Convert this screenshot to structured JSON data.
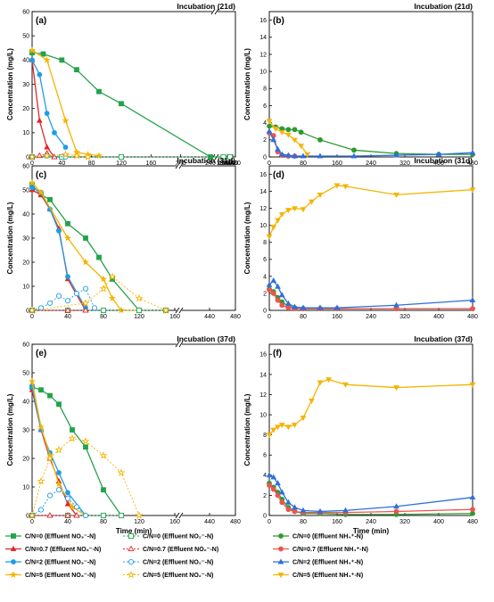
{
  "colors": {
    "C/N=0": "#22a34a",
    "C/N=0.7": "#e0262a",
    "C/N=2": "#1f9ce8",
    "C/N=5": "#f5b400",
    "nh4_0": "#2e9a2e",
    "nh4_07": "#ef5350",
    "nh4_2": "#2f6fdc",
    "nh4_5": "#f5b400"
  },
  "x_axis_label": "Time (min)",
  "y_axis_label": "Concentration (mg/L)",
  "legend": {
    "left": [
      {
        "key": "no3_0",
        "label": "C/N=0 (Effluent NO₃⁻-N)",
        "color": "#22a34a",
        "marker": "square",
        "filled": true,
        "dash": false
      },
      {
        "key": "no2_0",
        "label": "C/N=0 (Effluent NO₂⁻-N)",
        "color": "#22a34a",
        "marker": "square",
        "filled": false,
        "dash": true
      },
      {
        "key": "no3_07",
        "label": "C/N=0.7 (Effluent NO₃⁻-N)",
        "color": "#e0262a",
        "marker": "triangle",
        "filled": true,
        "dash": false
      },
      {
        "key": "no2_07",
        "label": "C/N=0.7 (Effluent NO₂⁻-N)",
        "color": "#e0262a",
        "marker": "triangle",
        "filled": false,
        "dash": true
      },
      {
        "key": "no3_2",
        "label": "C/N=2 (Effluent NO₃⁻-N)",
        "color": "#1f9ce8",
        "marker": "circle",
        "filled": true,
        "dash": false
      },
      {
        "key": "no2_2",
        "label": "C/N=2 (Effluent NO₂⁻-N)",
        "color": "#1f9ce8",
        "marker": "circle",
        "filled": false,
        "dash": true
      },
      {
        "key": "no3_5",
        "label": "C/N=5 (Effluent NO₃⁻-N)",
        "color": "#f5b400",
        "marker": "star",
        "filled": true,
        "dash": false
      },
      {
        "key": "no2_5",
        "label": "C/N=5 (Effluent NO₂⁻-N)",
        "color": "#f5b400",
        "marker": "star",
        "filled": false,
        "dash": true
      }
    ],
    "right": [
      {
        "key": "nh4_0",
        "label": "C/N=0 (Effluent NH₄⁺-N)",
        "color": "#2e9a2e",
        "marker": "circle",
        "filled": true,
        "dash": false
      },
      {
        "key": "nh4_07",
        "label": "C/N=0.7 (Effluent NH₄⁺-N)",
        "color": "#ef5350",
        "marker": "circle",
        "filled": true,
        "dash": false
      },
      {
        "key": "nh4_2",
        "label": "C/N=2 (Effluent NH₄⁺-N)",
        "color": "#2f6fdc",
        "marker": "triangle",
        "filled": true,
        "dash": false
      },
      {
        "key": "nh4_5",
        "label": "C/N=5 (Effluent NH₄⁺-N)",
        "color": "#f5b400",
        "marker": "tri-down",
        "filled": true,
        "dash": false
      }
    ]
  },
  "chart_data": [
    {
      "panel": "(a)",
      "title": "Incubation (21d)",
      "type": "line",
      "x_broken": true,
      "xticks_left": [
        0,
        40,
        80,
        120,
        160,
        200,
        240
      ],
      "xticks_right": [
        280,
        320,
        360,
        400,
        440,
        480
      ],
      "ylim": [
        0,
        60
      ],
      "yticks": [
        0,
        10,
        20,
        30,
        40,
        50,
        60
      ],
      "series": [
        {
          "key": "no3_0",
          "x": [
            0,
            15,
            40,
            60,
            90,
            120,
            240,
            300
          ],
          "y": [
            43,
            42.5,
            40,
            36,
            27,
            22,
            0,
            0
          ]
        },
        {
          "key": "no3_07",
          "x": [
            0,
            10,
            20,
            30
          ],
          "y": [
            40,
            15,
            4,
            0
          ]
        },
        {
          "key": "no3_2",
          "x": [
            0,
            10,
            20,
            30,
            45
          ],
          "y": [
            40,
            34,
            18,
            10,
            4
          ]
        },
        {
          "key": "no3_5",
          "x": [
            0,
            20,
            45,
            60,
            75,
            90
          ],
          "y": [
            44,
            40,
            15,
            2,
            1,
            0.5
          ]
        },
        {
          "key": "no2_0",
          "x": [
            0,
            40,
            120,
            300,
            400
          ],
          "y": [
            0,
            0,
            0,
            0,
            0
          ]
        },
        {
          "key": "no2_07",
          "x": [
            0,
            10,
            20,
            30
          ],
          "y": [
            0,
            0.5,
            1.5,
            0
          ]
        },
        {
          "key": "no2_2",
          "x": [
            0,
            20,
            45
          ],
          "y": [
            0,
            0.5,
            0
          ]
        },
        {
          "key": "no2_5",
          "x": [
            0,
            20,
            45,
            60,
            75
          ],
          "y": [
            0,
            0.5,
            1,
            0.5,
            0
          ]
        }
      ]
    },
    {
      "panel": "(b)",
      "title": "Incubation (21d)",
      "type": "line",
      "x_broken": false,
      "xticks": [
        0,
        80,
        160,
        240,
        320,
        400,
        480
      ],
      "ylim": [
        0,
        17
      ],
      "yticks": [
        0,
        2,
        4,
        6,
        8,
        10,
        12,
        14,
        16
      ],
      "series": [
        {
          "key": "nh4_0",
          "x": [
            0,
            15,
            30,
            45,
            60,
            75,
            120,
            200,
            300,
            400,
            480
          ],
          "y": [
            3.6,
            3.5,
            3.3,
            3.2,
            3.2,
            2.9,
            2.0,
            0.8,
            0.4,
            0.3,
            0.3
          ]
        },
        {
          "key": "nh4_07",
          "x": [
            0,
            10,
            20,
            30,
            45,
            60
          ],
          "y": [
            2.8,
            2.5,
            0.6,
            0.2,
            0.1,
            0.1
          ]
        },
        {
          "key": "nh4_2",
          "x": [
            0,
            10,
            20,
            30,
            45,
            60,
            80,
            120,
            200,
            300,
            400,
            480
          ],
          "y": [
            3.0,
            2.0,
            0.9,
            0.3,
            0.2,
            0.1,
            0.1,
            0.1,
            0.1,
            0.2,
            0.3,
            0.5
          ]
        },
        {
          "key": "nh4_5",
          "x": [
            0,
            15,
            30,
            45,
            60,
            75,
            90
          ],
          "y": [
            4.2,
            3.3,
            2.9,
            2.6,
            2.0,
            1.3,
            0.3
          ]
        }
      ]
    },
    {
      "panel": "(c)",
      "title": "Incubation (31d)",
      "type": "line",
      "x_broken": true,
      "xticks_left": [
        0,
        40,
        80,
        120,
        160
      ],
      "xticks_right": [
        440,
        480
      ],
      "ylim": [
        0,
        60
      ],
      "yticks": [
        0,
        10,
        20,
        30,
        40,
        50,
        60
      ],
      "series": [
        {
          "key": "no3_0",
          "x": [
            0,
            10,
            20,
            40,
            60,
            75,
            90,
            120
          ],
          "y": [
            52,
            48,
            46,
            36,
            30,
            22,
            13,
            0
          ]
        },
        {
          "key": "no3_07",
          "x": [
            0,
            10,
            20,
            30,
            40,
            60
          ],
          "y": [
            50,
            48,
            42,
            34,
            13,
            0
          ]
        },
        {
          "key": "no3_2",
          "x": [
            0,
            10,
            20,
            30,
            40,
            60
          ],
          "y": [
            51,
            49,
            42,
            33,
            14,
            1
          ]
        },
        {
          "key": "no3_5",
          "x": [
            0,
            10,
            40,
            60,
            80,
            90,
            100,
            120
          ],
          "y": [
            53,
            49,
            30,
            20,
            13,
            5,
            0,
            0
          ]
        },
        {
          "key": "no2_0",
          "x": [
            0,
            40,
            80,
            120,
            150
          ],
          "y": [
            0,
            0,
            0,
            0,
            0
          ]
        },
        {
          "key": "no2_07",
          "x": [
            0,
            40,
            60
          ],
          "y": [
            0,
            0,
            0
          ]
        },
        {
          "key": "no2_2",
          "x": [
            0,
            10,
            20,
            30,
            40,
            50,
            60,
            70
          ],
          "y": [
            0,
            1,
            3,
            6,
            4,
            7,
            9,
            1
          ]
        },
        {
          "key": "no2_5",
          "x": [
            0,
            60,
            80,
            90,
            120,
            150
          ],
          "y": [
            0,
            3,
            9,
            14,
            5,
            0
          ]
        }
      ]
    },
    {
      "panel": "(d)",
      "title": "Incubation (31d)",
      "type": "line",
      "x_broken": false,
      "xticks": [
        0,
        80,
        160,
        240,
        320,
        400,
        480
      ],
      "ylim": [
        0,
        17
      ],
      "yticks": [
        0,
        2,
        4,
        6,
        8,
        10,
        12,
        14,
        16
      ],
      "series": [
        {
          "key": "nh4_0",
          "x": [
            0,
            10,
            20,
            30,
            45,
            60,
            80,
            120,
            160,
            300,
            480
          ],
          "y": [
            2.5,
            2.2,
            1.5,
            1.0,
            0.5,
            0.3,
            0.2,
            0.2,
            0.2,
            0.2,
            0.2
          ]
        },
        {
          "key": "nh4_07",
          "x": [
            0,
            10,
            20,
            30,
            45,
            60,
            80,
            120,
            160,
            300,
            480
          ],
          "y": [
            2.4,
            2.0,
            1.2,
            0.6,
            0.3,
            0.2,
            0.2,
            0.2,
            0.2,
            0.2,
            0.2
          ]
        },
        {
          "key": "nh4_2",
          "x": [
            0,
            10,
            20,
            30,
            45,
            60,
            80,
            120,
            160,
            300,
            480
          ],
          "y": [
            3.0,
            3.5,
            2.8,
            1.8,
            0.8,
            0.4,
            0.3,
            0.3,
            0.3,
            0.6,
            1.2
          ]
        },
        {
          "key": "nh4_5",
          "x": [
            0,
            10,
            20,
            30,
            45,
            60,
            80,
            100,
            120,
            160,
            180,
            300,
            480
          ],
          "y": [
            8.7,
            9.8,
            10.6,
            11.3,
            11.8,
            12.0,
            11.9,
            12.8,
            13.6,
            14.7,
            14.6,
            13.6,
            14.2
          ]
        }
      ]
    },
    {
      "panel": "(e)",
      "title": "Incubation (37d)",
      "type": "line",
      "x_broken": true,
      "xticks_left": [
        0,
        40,
        80,
        120,
        160
      ],
      "xticks_right": [
        440,
        480
      ],
      "ylim": [
        0,
        60
      ],
      "yticks": [
        0,
        10,
        20,
        30,
        40,
        50,
        60
      ],
      "series": [
        {
          "key": "no3_0",
          "x": [
            0,
            10,
            20,
            30,
            45,
            60,
            80,
            100
          ],
          "y": [
            45,
            44,
            42,
            39,
            30,
            24,
            9,
            0
          ]
        },
        {
          "key": "no3_07",
          "x": [
            0,
            10,
            20,
            30,
            40,
            50
          ],
          "y": [
            44,
            30,
            20,
            12,
            4,
            0
          ]
        },
        {
          "key": "no3_2",
          "x": [
            0,
            10,
            20,
            30,
            40,
            60
          ],
          "y": [
            45,
            30,
            22,
            15,
            8,
            0
          ]
        },
        {
          "key": "no3_5",
          "x": [
            0,
            10,
            20,
            30,
            45,
            60
          ],
          "y": [
            47,
            31,
            21,
            11,
            3,
            0
          ]
        },
        {
          "key": "no2_0",
          "x": [
            0,
            40,
            80,
            100
          ],
          "y": [
            0,
            0,
            0,
            0
          ]
        },
        {
          "key": "no2_07",
          "x": [
            0,
            20,
            40,
            50
          ],
          "y": [
            0,
            0,
            0,
            0
          ]
        },
        {
          "key": "no2_2",
          "x": [
            0,
            10,
            20,
            30,
            40,
            50,
            60
          ],
          "y": [
            0,
            2,
            7,
            9,
            6,
            3,
            0
          ]
        },
        {
          "key": "no2_5",
          "x": [
            0,
            10,
            20,
            30,
            45,
            60,
            80,
            100,
            120
          ],
          "y": [
            0,
            12,
            20,
            23,
            27,
            26,
            21,
            15,
            0
          ]
        }
      ]
    },
    {
      "panel": "(f)",
      "title": "Incubation (37d)",
      "type": "line",
      "x_broken": false,
      "xticks": [
        0,
        80,
        160,
        240,
        320,
        400,
        480
      ],
      "ylim": [
        0,
        17
      ],
      "yticks": [
        0,
        2,
        4,
        6,
        8,
        10,
        12,
        14,
        16
      ],
      "series": [
        {
          "key": "nh4_0",
          "x": [
            0,
            10,
            20,
            30,
            45,
            60,
            80,
            120,
            180,
            300,
            480
          ],
          "y": [
            3.2,
            2.8,
            2.3,
            1.6,
            0.8,
            0.4,
            0.2,
            0.2,
            0.1,
            0.1,
            0.2
          ]
        },
        {
          "key": "nh4_07",
          "x": [
            0,
            10,
            20,
            30,
            45,
            60,
            80,
            120,
            180,
            300,
            480
          ],
          "y": [
            3.0,
            2.6,
            2.0,
            1.3,
            0.6,
            0.4,
            0.3,
            0.3,
            0.3,
            0.4,
            0.6
          ]
        },
        {
          "key": "nh4_2",
          "x": [
            0,
            10,
            20,
            30,
            45,
            60,
            80,
            120,
            180,
            300,
            480
          ],
          "y": [
            4.0,
            3.8,
            3.2,
            2.3,
            1.3,
            0.8,
            0.5,
            0.4,
            0.5,
            0.9,
            1.8
          ]
        },
        {
          "key": "nh4_5",
          "x": [
            0,
            10,
            20,
            30,
            45,
            60,
            80,
            100,
            120,
            140,
            180,
            300,
            480
          ],
          "y": [
            8.0,
            8.5,
            8.8,
            9.0,
            8.8,
            9.0,
            9.7,
            11.4,
            13.2,
            13.5,
            13.0,
            12.7,
            13.0
          ]
        }
      ]
    }
  ]
}
